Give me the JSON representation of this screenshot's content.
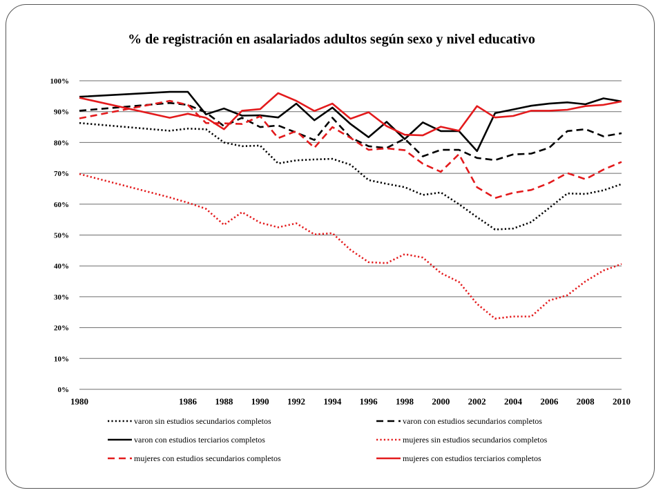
{
  "chart_data": {
    "type": "line",
    "title": "% de registración en asalariados adultos según sexo y nivel educativo",
    "xlabel": "",
    "ylabel": "",
    "ylim": [
      0,
      100
    ],
    "y_ticks": [
      "0%",
      "10%",
      "20%",
      "30%",
      "40%",
      "50%",
      "60%",
      "70%",
      "80%",
      "90%",
      "100%"
    ],
    "x_tick_labels": [
      "1980",
      "1986",
      "1988",
      "1990",
      "1992",
      "1994",
      "1996",
      "1998",
      "2000",
      "2002",
      "2004",
      "2006",
      "2008",
      "2010"
    ],
    "x_tick_positions": [
      1980,
      1986,
      1988,
      1990,
      1992,
      1994,
      1996,
      1998,
      2000,
      2002,
      2004,
      2006,
      2008,
      2010
    ],
    "grid": "horizontal",
    "legend_position": "bottom",
    "x": [
      1980,
      1985,
      1986,
      1987,
      1988,
      1989,
      1990,
      1991,
      1992,
      1993,
      1994,
      1995,
      1996,
      1997,
      1998,
      1999,
      2000,
      2001,
      2002,
      2003,
      2004,
      2005,
      2006,
      2007,
      2008,
      2009,
      2010
    ],
    "series": [
      {
        "name": "varon sin estudios secundarios completos",
        "color": "#000000",
        "dash": "dotted",
        "values": [
          86.3,
          83.8,
          84.5,
          84.3,
          80.0,
          78.8,
          79.0,
          73.2,
          74.2,
          74.5,
          74.7,
          72.8,
          67.8,
          66.6,
          65.5,
          63.0,
          63.8,
          60.0,
          55.8,
          51.8,
          52.1,
          54.2,
          58.8,
          63.5,
          63.3,
          64.5,
          66.5
        ]
      },
      {
        "name": "varon con estudios secundarios completos",
        "color": "#000000",
        "dash": "dashed",
        "values": [
          90.3,
          92.8,
          92.2,
          89.7,
          85.3,
          88.0,
          85.0,
          85.5,
          83.2,
          80.8,
          88.0,
          81.6,
          78.8,
          78.2,
          81.2,
          75.5,
          77.6,
          77.6,
          75.0,
          74.3,
          76.1,
          76.4,
          78.3,
          83.7,
          84.3,
          82.0,
          83.0
        ]
      },
      {
        "name": "varon con estudios terciarios completos",
        "color": "#000000",
        "dash": "solid",
        "values": [
          94.8,
          96.4,
          96.4,
          89.1,
          91.0,
          88.7,
          88.8,
          88.1,
          92.6,
          87.2,
          91.3,
          86.0,
          81.7,
          86.7,
          81.1,
          86.5,
          83.7,
          83.7,
          77.2,
          89.5,
          90.7,
          91.9,
          92.6,
          93.0,
          92.4,
          94.3,
          93.3
        ]
      },
      {
        "name": "mujeres sin estudios secundarios completos",
        "color": "#e31a1c",
        "dash": "dotted",
        "values": [
          69.8,
          62.2,
          60.5,
          58.5,
          53.3,
          57.4,
          54.0,
          52.5,
          53.8,
          50.2,
          50.6,
          45.2,
          41.2,
          40.9,
          43.8,
          42.7,
          37.7,
          34.8,
          27.7,
          22.9,
          23.6,
          23.6,
          28.8,
          30.5,
          35.0,
          38.5,
          40.6
        ]
      },
      {
        "name": "mujeres con estudios secundarios completos",
        "color": "#e31a1c",
        "dash": "dashed",
        "values": [
          87.8,
          93.5,
          92.2,
          86.3,
          86.2,
          86.0,
          88.5,
          81.4,
          83.7,
          78.3,
          85.0,
          81.5,
          77.6,
          78.1,
          77.5,
          73.1,
          70.5,
          76.2,
          65.5,
          62.0,
          63.7,
          64.6,
          66.9,
          70.1,
          68.1,
          71.2,
          73.7
        ]
      },
      {
        "name": "mujeres con estudios terciarios completos",
        "color": "#e31a1c",
        "dash": "solid",
        "values": [
          94.5,
          88.0,
          89.3,
          88.0,
          84.3,
          90.3,
          90.8,
          96.0,
          93.5,
          90.2,
          92.6,
          87.7,
          89.8,
          85.3,
          82.5,
          82.3,
          85.1,
          83.8,
          91.8,
          88.1,
          88.6,
          90.3,
          90.3,
          90.6,
          91.8,
          92.2,
          93.3
        ]
      }
    ]
  }
}
